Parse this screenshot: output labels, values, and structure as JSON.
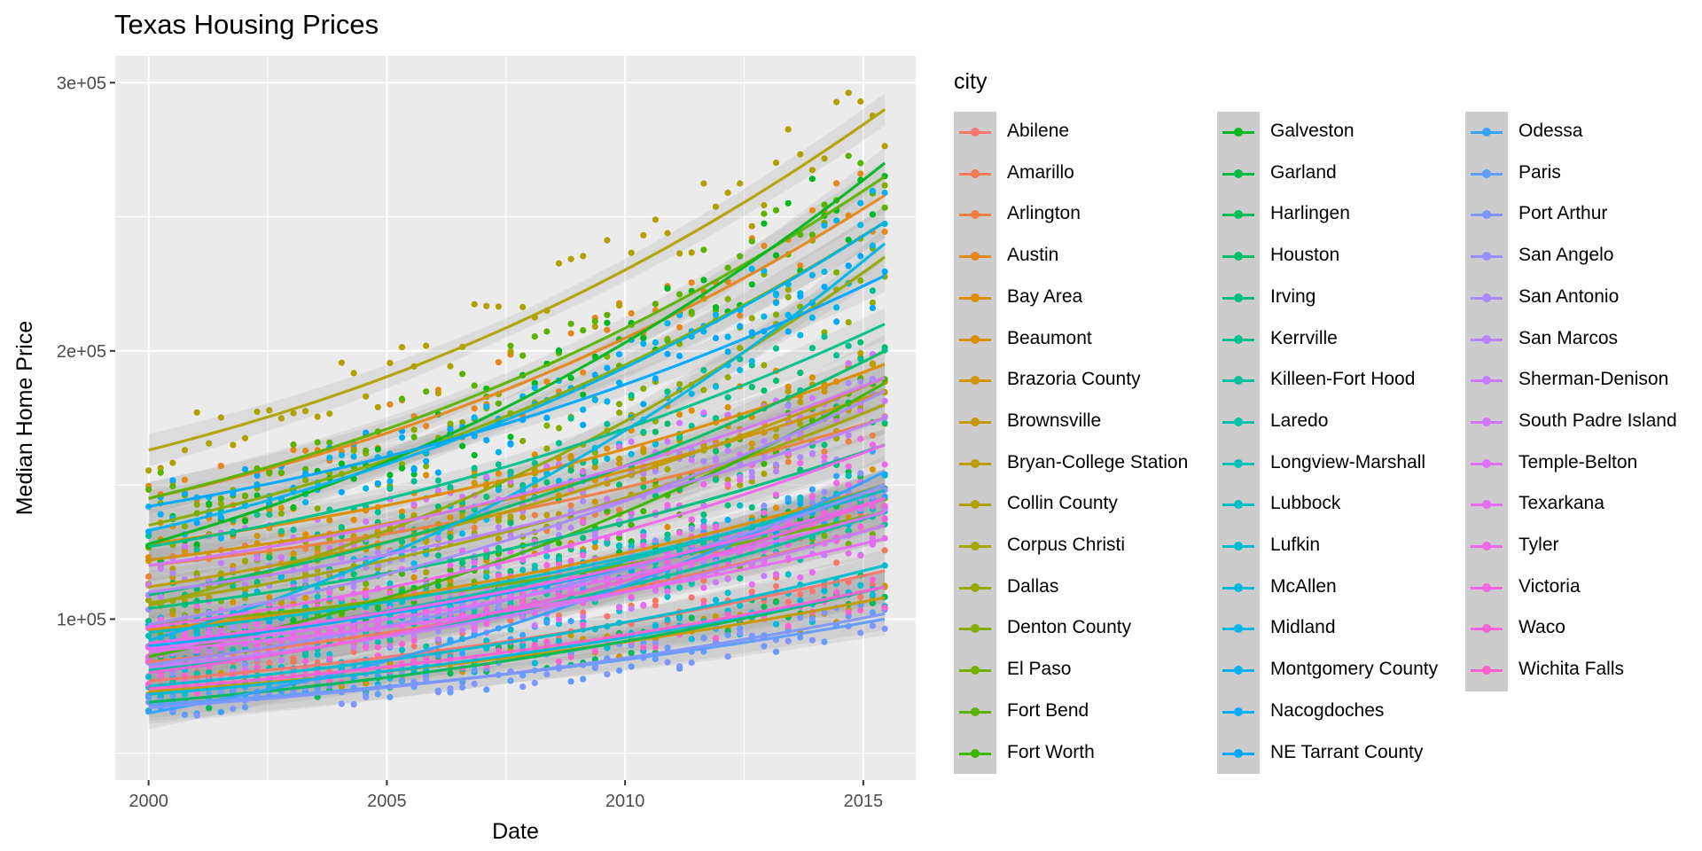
{
  "chart_data": {
    "type": "scatter",
    "title": "Texas Housing Prices",
    "xlabel": "Date",
    "ylabel": "Median Home Price",
    "xlim": [
      1999.3,
      2016.1
    ],
    "ylim": [
      40000,
      310000
    ],
    "xticks": [
      2000,
      2005,
      2010,
      2015
    ],
    "xtick_labels": [
      "2000",
      "2005",
      "2010",
      "2015"
    ],
    "yticks": [
      100000,
      200000,
      300000
    ],
    "ytick_labels": [
      "1e+05",
      "2e+05",
      "3e+05"
    ],
    "grid": true,
    "smoother": "loess with confidence band per city",
    "legend_title": "city",
    "legend_position": "right",
    "series": [
      {
        "name": "Abilene",
        "color": "#F8766D",
        "start": 77000,
        "end": 118000
      },
      {
        "name": "Amarillo",
        "color": "#F37B59",
        "start": 84000,
        "end": 135000
      },
      {
        "name": "Arlington",
        "color": "#ED8141",
        "start": 120000,
        "end": 175000
      },
      {
        "name": "Austin",
        "color": "#E7861B",
        "start": 145000,
        "end": 258000
      },
      {
        "name": "Bay Area",
        "color": "#DF8C00",
        "start": 128000,
        "end": 195000
      },
      {
        "name": "Beaumont",
        "color": "#D89000",
        "start": 96000,
        "end": 150000
      },
      {
        "name": "Brazoria County",
        "color": "#CF9400",
        "start": 122000,
        "end": 185000
      },
      {
        "name": "Brownsville",
        "color": "#C59900",
        "start": 73000,
        "end": 108000
      },
      {
        "name": "Bryan-College Station",
        "color": "#BB9D00",
        "start": 112000,
        "end": 190000
      },
      {
        "name": "Collin County",
        "color": "#B0A100",
        "start": 163000,
        "end": 290000
      },
      {
        "name": "Corpus Christi",
        "color": "#A3A500",
        "start": 106000,
        "end": 180000
      },
      {
        "name": "Dallas",
        "color": "#95A900",
        "start": 105000,
        "end": 235000
      },
      {
        "name": "Denton County",
        "color": "#85AD00",
        "start": 135000,
        "end": 248000
      },
      {
        "name": "El Paso",
        "color": "#72B000",
        "start": 98000,
        "end": 140000
      },
      {
        "name": "Fort Bend",
        "color": "#5BB300",
        "start": 145000,
        "end": 265000
      },
      {
        "name": "Fort Worth",
        "color": "#39B600",
        "start": 86000,
        "end": 188000
      },
      {
        "name": "Galveston",
        "color": "#00B81F",
        "start": 128000,
        "end": 270000
      },
      {
        "name": "Garland",
        "color": "#00BA42",
        "start": 90000,
        "end": 150000
      },
      {
        "name": "Harlingen",
        "color": "#00BC59",
        "start": 69000,
        "end": 112000
      },
      {
        "name": "Houston",
        "color": "#00BE6C",
        "start": 109000,
        "end": 200000
      },
      {
        "name": "Irving",
        "color": "#00BF7D",
        "start": 104000,
        "end": 165000
      },
      {
        "name": "Kerrville",
        "color": "#00C08D",
        "start": 127000,
        "end": 210000
      },
      {
        "name": "Killeen-Fort Hood",
        "color": "#00C19C",
        "start": 81000,
        "end": 140000
      },
      {
        "name": "Laredo",
        "color": "#00C1AA",
        "start": 80000,
        "end": 145000
      },
      {
        "name": "Longview-Marshall",
        "color": "#00C0B8",
        "start": 90000,
        "end": 150000
      },
      {
        "name": "Lubbock",
        "color": "#00BFC4",
        "start": 95000,
        "end": 148000
      },
      {
        "name": "Lufkin",
        "color": "#00BDD0",
        "start": 75000,
        "end": 120000
      },
      {
        "name": "McAllen",
        "color": "#00BADB",
        "start": 72000,
        "end": 112000
      },
      {
        "name": "Midland",
        "color": "#00B7E5",
        "start": 92000,
        "end": 240000
      },
      {
        "name": "Montgomery County",
        "color": "#00B2EE",
        "start": 133000,
        "end": 248000
      },
      {
        "name": "Nacogdoches",
        "color": "#00ADF7",
        "start": 90000,
        "end": 145000
      },
      {
        "name": "NE Tarrant County",
        "color": "#00A8FF",
        "start": 142000,
        "end": 228000
      },
      {
        "name": "Odessa",
        "color": "#35A2FF",
        "start": 65000,
        "end": 155000
      },
      {
        "name": "Paris",
        "color": "#619CFF",
        "start": 68000,
        "end": 100000
      },
      {
        "name": "Port Arthur",
        "color": "#7E96FF",
        "start": 67000,
        "end": 102000
      },
      {
        "name": "San Angelo",
        "color": "#9590FF",
        "start": 83000,
        "end": 150000
      },
      {
        "name": "San Antonio",
        "color": "#A98BFF",
        "start": 98000,
        "end": 185000
      },
      {
        "name": "San Marcos",
        "color": "#B983FF",
        "start": 110000,
        "end": 175000
      },
      {
        "name": "Sherman-Denison",
        "color": "#C77CFF",
        "start": 82000,
        "end": 135000
      },
      {
        "name": "South Padre Island",
        "color": "#D376FF",
        "start": 120000,
        "end": 190000
      },
      {
        "name": "Temple-Belton",
        "color": "#DF70F9",
        "start": 89000,
        "end": 140000
      },
      {
        "name": "Texarkana",
        "color": "#E76BF3",
        "start": 88000,
        "end": 130000
      },
      {
        "name": "Tyler",
        "color": "#EF67EB",
        "start": 97000,
        "end": 165000
      },
      {
        "name": "Victoria",
        "color": "#F564E3",
        "start": 91000,
        "end": 145000
      },
      {
        "name": "Waco",
        "color": "#FA62DB",
        "start": 80000,
        "end": 145000
      },
      {
        "name": "Wichita Falls",
        "color": "#FF61D2",
        "start": 74000,
        "end": 112000
      }
    ]
  },
  "legend_extra_colors": [
    "#FF62BC",
    "#FF65AE",
    "#FF68A1",
    "#FD6C93",
    "#FB7083",
    "#F8766D"
  ]
}
